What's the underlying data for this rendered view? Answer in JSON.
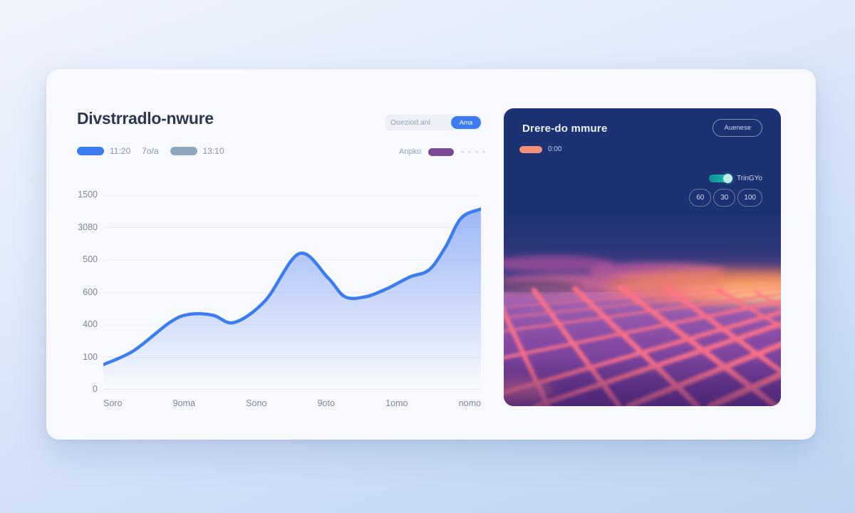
{
  "left_card": {
    "title": "Divstrradlo-nwure",
    "legend": [
      {
        "swatch": "#3b7cf0",
        "label": "11:20"
      },
      {
        "swatch": null,
        "label": "7o/a"
      },
      {
        "swatch": "#8fa6bf",
        "label": "13:10"
      }
    ],
    "filter": {
      "value": "Ooeziod.anl",
      "button_label": "Ama"
    },
    "secondary_legend": {
      "label": "Anpko",
      "swatch": "#7b4a92",
      "dashes": "- - - -"
    }
  },
  "chart_data": {
    "type": "area",
    "title": "Divstrradlo-nwure",
    "xlabel": "",
    "ylabel": "",
    "ylim": [
      0,
      1200
    ],
    "grid": true,
    "grid_color": "#e9edf3",
    "baseline_color": "#d6dbe4",
    "area_top_color": "rgba(84,128,240,0.55)",
    "area_bottom_color": "rgba(84,128,240,0)",
    "y_tick_labels_top_to_bottom": [
      "1500",
      "3080",
      "500",
      "600",
      "400",
      "100",
      "0"
    ],
    "x_tick_labels": [
      "Soro",
      "9oma",
      "Sono",
      "9oto",
      "1omo",
      "nomo"
    ],
    "series": [
      {
        "name": "11:20",
        "color": "#3b7cf0",
        "x": [
          0,
          0.08,
          0.176,
          0.227,
          0.29,
          0.347,
          0.429,
          0.519,
          0.595,
          0.639,
          0.691,
          0.748,
          0.811,
          0.863,
          0.906,
          0.948,
          1.0
        ],
        "values": [
          155,
          240,
          415,
          465,
          460,
          415,
          550,
          840,
          690,
          575,
          572,
          620,
          695,
          740,
          880,
          1060,
          1115
        ]
      }
    ]
  },
  "panel": {
    "title": "Drere-do mmure",
    "action_button_label": "Auenese",
    "legend": {
      "swatch": "#f29078",
      "label": "0:00"
    },
    "toggle": {
      "label": "TrinGYo",
      "on": true,
      "color": "#14b8a8"
    },
    "range_buttons": [
      "60",
      "30",
      "100"
    ],
    "bg_color": "#1d3273"
  },
  "colors": {
    "accent_blue": "#3b7cf0",
    "legend_gray": "#8fa6bf",
    "legend_purple": "#7b4a92",
    "salmon": "#f29078",
    "teal": "#14b8a8",
    "panel_navy": "#1d3273",
    "sunset_orange": "#ff8a55",
    "grid_pink": "#ff7287"
  }
}
